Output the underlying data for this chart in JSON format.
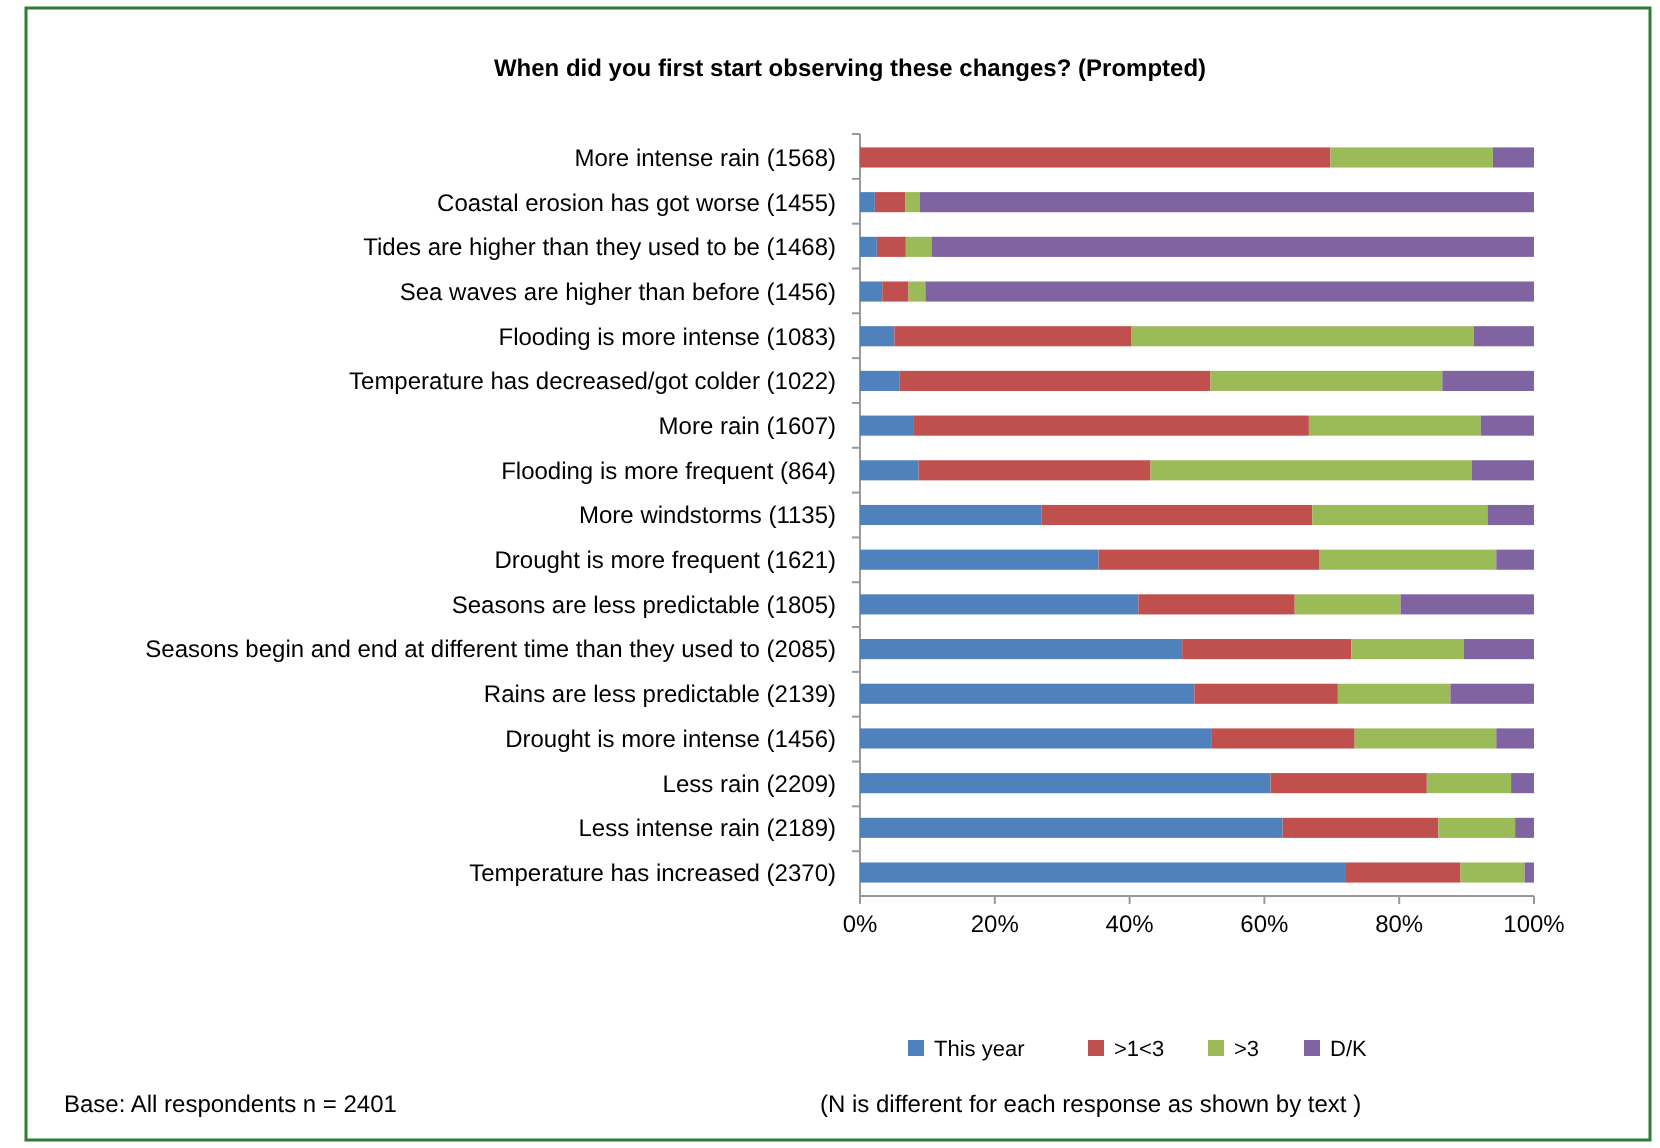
{
  "chart_data": {
    "type": "bar",
    "orientation": "horizontal",
    "stacked": true,
    "title": "When did you first start observing these changes? (Prompted)",
    "categories": [
      "More intense rain (1568)",
      "Coastal erosion has got worse (1455)",
      "Tides are higher than they used to be (1468)",
      "Sea waves are higher than before (1456)",
      "Flooding is more intense (1083)",
      "Temperature has decreased/got colder (1022)",
      "More rain (1607)",
      "Flooding is more frequent (864)",
      "More windstorms (1135)",
      "Drought is more frequent (1621)",
      "Seasons are less predictable (1805)",
      "Seasons begin and end at different time than they used to (2085)",
      "Rains are less predictable (2139)",
      "Drought is more intense (1456)",
      "Less rain (2209)",
      "Less intense rain (2189)",
      "Temperature has increased (2370)"
    ],
    "series": [
      {
        "name": "This year",
        "color": "#4f81bd",
        "values": [
          0,
          2.2,
          2.5,
          3.3,
          5.1,
          5.9,
          8.0,
          8.7,
          26.9,
          35.4,
          41.3,
          47.8,
          49.6,
          52.1,
          60.9,
          62.7,
          72.1
        ]
      },
      {
        "name": ">1<3",
        "color": "#c0504d",
        "values": [
          69.8,
          4.5,
          4.3,
          3.9,
          35.2,
          46.1,
          58.6,
          34.4,
          40.2,
          32.7,
          23.2,
          25.1,
          21.3,
          21.3,
          23.2,
          23.1,
          17.0
        ]
      },
      {
        "name": ">3",
        "color": "#9bbb59",
        "values": [
          24.1,
          2.2,
          3.8,
          2.5,
          50.8,
          34.4,
          25.5,
          47.7,
          26.0,
          26.3,
          15.7,
          16.7,
          16.7,
          21.0,
          12.5,
          11.4,
          9.5
        ]
      },
      {
        "name": "D/K",
        "color": "#8064a2",
        "values": [
          6.1,
          91.1,
          89.4,
          90.3,
          8.9,
          13.6,
          7.9,
          9.2,
          6.9,
          5.6,
          19.8,
          10.4,
          12.4,
          5.6,
          3.4,
          2.8,
          1.4
        ]
      }
    ],
    "xlim": [
      0,
      100
    ],
    "xticks": [
      {
        "value": 0,
        "label": "0%"
      },
      {
        "value": 20,
        "label": "20%"
      },
      {
        "value": 40,
        "label": "40%"
      },
      {
        "value": 60,
        "label": "60%"
      },
      {
        "value": 80,
        "label": "80%"
      },
      {
        "value": 100,
        "label": "100%"
      }
    ],
    "legend": "bottom",
    "annotations": [
      "Base: All respondents  n = 2401",
      "(N is different for each response as shown by text )"
    ]
  }
}
